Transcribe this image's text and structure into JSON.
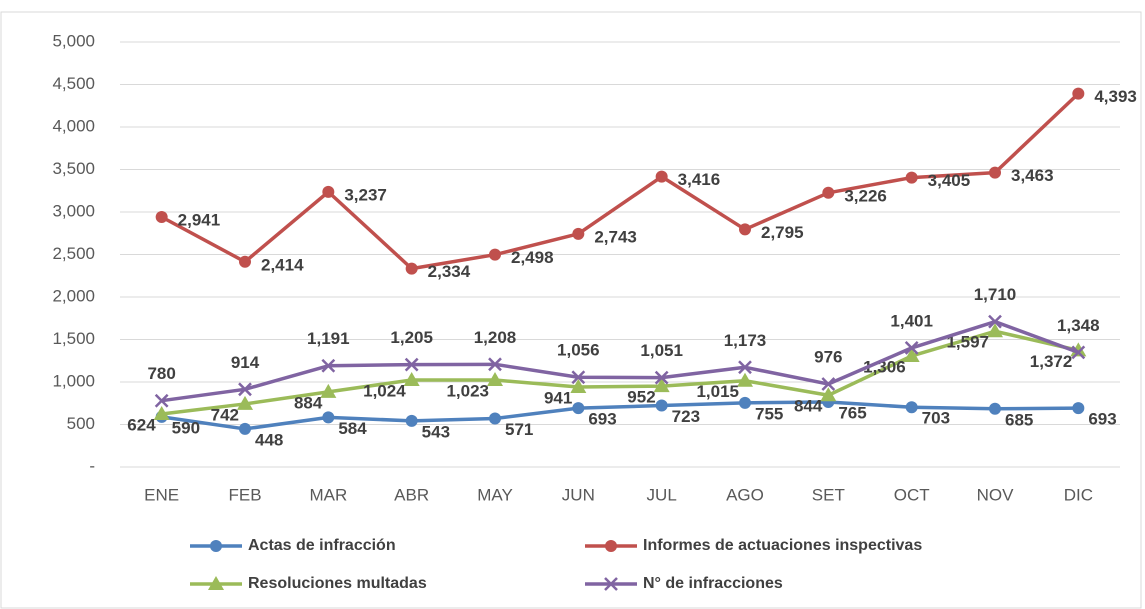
{
  "chart_data": {
    "type": "line",
    "categories": [
      "ENE",
      "FEB",
      "MAR",
      "ABR",
      "MAY",
      "JUN",
      "JUL",
      "AGO",
      "SET",
      "OCT",
      "NOV",
      "DIC"
    ],
    "ylim": [
      0,
      5000
    ],
    "yticks": [
      {
        "value": 0,
        "label": "-"
      },
      500,
      {
        "value": 1000,
        "label": "1,000"
      },
      {
        "value": 1500,
        "label": "1,500"
      },
      {
        "value": 2000,
        "label": "2,000"
      },
      {
        "value": 2500,
        "label": "2,500"
      },
      {
        "value": 3000,
        "label": "3,000"
      },
      {
        "value": 3500,
        "label": "3,500"
      },
      {
        "value": 4000,
        "label": "4,000"
      },
      {
        "value": 4500,
        "label": "4,500"
      },
      {
        "value": 5000,
        "label": "5,000"
      }
    ],
    "grid": true,
    "legend": "bottom",
    "series": [
      {
        "name": "Actas de infracción",
        "color": "#4f81bd",
        "marker": "circle",
        "values": [
          590,
          448,
          584,
          543,
          571,
          693,
          723,
          755,
          765,
          703,
          685,
          693
        ],
        "value_labels": [
          "590",
          "448",
          "584",
          "543",
          "571",
          "693",
          "723",
          "755",
          "765",
          "703",
          "685",
          "693"
        ]
      },
      {
        "name": "Informes de actuaciones inspectivas",
        "color": "#c0504d",
        "marker": "circle",
        "values": [
          2941,
          2414,
          3237,
          2334,
          2498,
          2743,
          3416,
          2795,
          3226,
          3405,
          3463,
          4393
        ],
        "value_labels": [
          "2,941",
          "2,414",
          "3,237",
          "2,334",
          "2,498",
          "2,743",
          "3,416",
          "2,795",
          "3,226",
          "3,405",
          "3,463",
          "4,393"
        ]
      },
      {
        "name": "Resoluciones multadas",
        "color": "#9bbb59",
        "marker": "triangle",
        "values": [
          624,
          742,
          884,
          1024,
          1023,
          941,
          952,
          1015,
          844,
          1306,
          1597,
          1372
        ],
        "value_labels": [
          "624",
          "742",
          "884",
          "1,024",
          "1,023",
          "941",
          "952",
          "1,015",
          "844",
          "1,306",
          "1,597",
          "1,372"
        ]
      },
      {
        "name": "N° de infracciones",
        "color": "#8064a2",
        "marker": "x",
        "values": [
          780,
          914,
          1191,
          1205,
          1208,
          1056,
          1051,
          1173,
          976,
          1401,
          1710,
          1348
        ],
        "value_labels": [
          "780",
          "914",
          "1,191",
          "1,205",
          "1,208",
          "1,056",
          "1,051",
          "1,173",
          "976",
          "1,401",
          "1,710",
          "1,348"
        ]
      }
    ]
  }
}
